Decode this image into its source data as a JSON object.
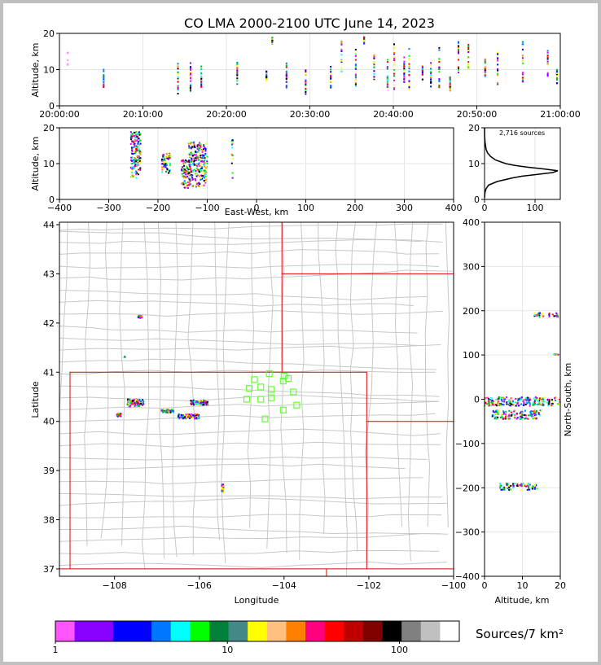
{
  "title": "CO LMA 2000-2100 UTC June 14, 2023",
  "colors": {
    "state_border": "#e00000",
    "county_border": "#c8c8c8",
    "station": "#66ff33",
    "frame": "#c0c0c0"
  },
  "chart_data": [
    {
      "id": "time-altitude",
      "type": "scatter",
      "ylabel": "Altitude, km",
      "ylim": [
        0,
        20
      ],
      "yticks": [
        0,
        10,
        20
      ],
      "xlim_minutes": [
        0,
        60
      ],
      "xticks": [
        {
          "minute": 0,
          "label": "20:00:00"
        },
        {
          "minute": 10,
          "label": "20:10:00"
        },
        {
          "minute": 20,
          "label": "20:20:00"
        },
        {
          "minute": 30,
          "label": "20:30:00"
        },
        {
          "minute": 40,
          "label": "20:40:00"
        },
        {
          "minute": 50,
          "label": "20:50:00"
        },
        {
          "minute": 60,
          "label": "21:00:00"
        }
      ],
      "flashes": [
        {
          "minute": 1.0,
          "alt": [
            11,
            15
          ],
          "faint": true
        },
        {
          "minute": 5.3,
          "alt": [
            5,
            10
          ]
        },
        {
          "minute": 14.2,
          "alt": [
            3,
            12
          ]
        },
        {
          "minute": 15.7,
          "alt": [
            4,
            12
          ]
        },
        {
          "minute": 17.0,
          "alt": [
            5,
            11
          ]
        },
        {
          "minute": 21.3,
          "alt": [
            6,
            12
          ]
        },
        {
          "minute": 24.8,
          "alt": [
            7,
            10
          ]
        },
        {
          "minute": 25.5,
          "alt": [
            17,
            19
          ]
        },
        {
          "minute": 27.2,
          "alt": [
            5,
            13
          ]
        },
        {
          "minute": 29.5,
          "alt": [
            3,
            10
          ]
        },
        {
          "minute": 32.5,
          "alt": [
            5,
            11
          ]
        },
        {
          "minute": 33.8,
          "alt": [
            9,
            18
          ]
        },
        {
          "minute": 35.5,
          "alt": [
            5,
            16
          ]
        },
        {
          "minute": 36.5,
          "alt": [
            17,
            19
          ]
        },
        {
          "minute": 37.7,
          "alt": [
            5,
            14
          ]
        },
        {
          "minute": 39.3,
          "alt": [
            5,
            14
          ]
        },
        {
          "minute": 40.1,
          "alt": [
            4,
            18
          ]
        },
        {
          "minute": 41.3,
          "alt": [
            6,
            14
          ]
        },
        {
          "minute": 41.9,
          "alt": [
            4,
            16
          ]
        },
        {
          "minute": 43.5,
          "alt": [
            7,
            11
          ]
        },
        {
          "minute": 44.5,
          "alt": [
            5,
            12
          ]
        },
        {
          "minute": 45.5,
          "alt": [
            5,
            17
          ]
        },
        {
          "minute": 46.8,
          "alt": [
            4,
            8
          ]
        },
        {
          "minute": 47.8,
          "alt": [
            9,
            18
          ]
        },
        {
          "minute": 49.0,
          "alt": [
            10,
            17
          ]
        },
        {
          "minute": 51.0,
          "alt": [
            8,
            13
          ]
        },
        {
          "minute": 52.5,
          "alt": [
            5,
            16
          ]
        },
        {
          "minute": 55.5,
          "alt": [
            6,
            18
          ]
        },
        {
          "minute": 58.5,
          "alt": [
            8,
            16
          ]
        },
        {
          "minute": 59.6,
          "alt": [
            6,
            10
          ]
        }
      ]
    },
    {
      "id": "ew-altitude",
      "type": "scatter",
      "xlabel": "East-West, km",
      "ylabel": "Altitude, km",
      "xlim": [
        -400,
        400
      ],
      "ylim": [
        0,
        20
      ],
      "xticks": [
        -400,
        -300,
        -200,
        -100,
        0,
        100,
        200,
        300,
        400
      ],
      "yticks": [
        0,
        10,
        20
      ],
      "clusters": [
        {
          "x": [
            -255,
            -235
          ],
          "alt": [
            6,
            19
          ]
        },
        {
          "x": [
            -192,
            -175
          ],
          "alt": [
            7,
            13
          ]
        },
        {
          "x": [
            -152,
            -135
          ],
          "alt": [
            3,
            11
          ]
        },
        {
          "x": [
            -138,
            -100
          ],
          "alt": [
            3,
            16
          ]
        },
        {
          "x": [
            -50,
            -48
          ],
          "alt": [
            5,
            17
          ]
        }
      ]
    },
    {
      "id": "altitude-histogram",
      "type": "line",
      "annotation": "2,716 sources",
      "xlim": [
        0,
        150
      ],
      "ylim": [
        0,
        20
      ],
      "xticks": [
        0,
        100
      ],
      "yticks": [
        0,
        10,
        20
      ],
      "profile": [
        {
          "alt": 0.5,
          "count": 0
        },
        {
          "alt": 2,
          "count": 1
        },
        {
          "alt": 3,
          "count": 3
        },
        {
          "alt": 4,
          "count": 8
        },
        {
          "alt": 5,
          "count": 25
        },
        {
          "alt": 6,
          "count": 55
        },
        {
          "alt": 6.5,
          "count": 75
        },
        {
          "alt": 7,
          "count": 105
        },
        {
          "alt": 7.5,
          "count": 135
        },
        {
          "alt": 8,
          "count": 145
        },
        {
          "alt": 8.5,
          "count": 118
        },
        {
          "alt": 9,
          "count": 85
        },
        {
          "alt": 9.5,
          "count": 60
        },
        {
          "alt": 10,
          "count": 42
        },
        {
          "alt": 11,
          "count": 22
        },
        {
          "alt": 12,
          "count": 12
        },
        {
          "alt": 13,
          "count": 6
        },
        {
          "alt": 14,
          "count": 3
        },
        {
          "alt": 16,
          "count": 1
        },
        {
          "alt": 18,
          "count": 0
        },
        {
          "alt": 20,
          "count": 0
        }
      ]
    },
    {
      "id": "plan-view",
      "type": "scatter",
      "xlabel": "Longitude",
      "ylabel": "Latitude",
      "xlim": [
        -109.3,
        -100.0
      ],
      "ylim": [
        36.85,
        44.05
      ],
      "xticks": [
        -108,
        -106,
        -104,
        -102,
        -100
      ],
      "yticks": [
        37,
        38,
        39,
        40,
        41,
        42,
        43,
        44
      ],
      "state_lines": [
        [
          [
            -109.05,
            37.0
          ],
          [
            -109.05,
            41.0
          ],
          [
            -102.05,
            41.0
          ],
          [
            -102.05,
            37.0
          ],
          [
            -109.05,
            37.0
          ]
        ],
        [
          [
            -104.05,
            41.0
          ],
          [
            -104.05,
            44.05
          ]
        ],
        [
          [
            -104.05,
            43.0
          ],
          [
            -100.0,
            43.0
          ]
        ],
        [
          [
            -102.05,
            40.0
          ],
          [
            -100.0,
            40.0
          ]
        ],
        [
          [
            -103.0,
            37.0
          ],
          [
            -103.0,
            36.85
          ]
        ],
        [
          [
            -109.05,
            37.0
          ],
          [
            -109.3,
            37.0
          ]
        ],
        [
          [
            -102.05,
            37.0
          ],
          [
            -100.0,
            37.0
          ]
        ]
      ],
      "stations": [
        [
          -104.35,
          40.97
        ],
        [
          -104.0,
          40.92
        ],
        [
          -103.9,
          40.87
        ],
        [
          -104.02,
          40.82
        ],
        [
          -104.7,
          40.85
        ],
        [
          -104.55,
          40.7
        ],
        [
          -104.82,
          40.67
        ],
        [
          -104.3,
          40.65
        ],
        [
          -103.78,
          40.6
        ],
        [
          -104.3,
          40.48
        ],
        [
          -104.55,
          40.45
        ],
        [
          -104.88,
          40.45
        ],
        [
          -103.7,
          40.33
        ],
        [
          -104.02,
          40.23
        ],
        [
          -104.45,
          40.05
        ]
      ],
      "source_patches": [
        {
          "lon": [
            -107.7,
            -107.3
          ],
          "lat": [
            40.3,
            40.45
          ]
        },
        {
          "lon": [
            -106.9,
            -106.6
          ],
          "lat": [
            40.18,
            40.24
          ]
        },
        {
          "lon": [
            -106.5,
            -106.0
          ],
          "lat": [
            40.05,
            40.15
          ]
        },
        {
          "lon": [
            -106.2,
            -105.8
          ],
          "lat": [
            40.33,
            40.43
          ]
        },
        {
          "lon": [
            -107.95,
            -107.85
          ],
          "lat": [
            40.1,
            40.16
          ]
        },
        {
          "lon": [
            -107.45,
            -107.35
          ],
          "lat": [
            42.1,
            42.15
          ]
        },
        {
          "lon": [
            -107.8,
            -107.75
          ],
          "lat": [
            41.3,
            41.33
          ]
        },
        {
          "lon": [
            -105.47,
            -105.43
          ],
          "lat": [
            38.55,
            38.72
          ]
        }
      ]
    },
    {
      "id": "altitude-ns",
      "type": "scatter",
      "xlabel": "Altitude, km",
      "ylabel": "North-South, km",
      "xlim": [
        0,
        20
      ],
      "ylim": [
        -400,
        400
      ],
      "xticks": [
        0,
        10,
        20
      ],
      "yticks": [
        -400,
        -300,
        -200,
        -100,
        0,
        100,
        200,
        300,
        400
      ],
      "clusters": [
        {
          "alt": [
            0,
            20
          ],
          "ns": [
            -15,
            5
          ]
        },
        {
          "alt": [
            2,
            15
          ],
          "ns": [
            -45,
            -25
          ]
        },
        {
          "alt": [
            4,
            14
          ],
          "ns": [
            -205,
            -190
          ]
        },
        {
          "alt": [
            13,
            20
          ],
          "ns": [
            185,
            195
          ]
        },
        {
          "alt": [
            18,
            20
          ],
          "ns": [
            100,
            102
          ]
        }
      ]
    }
  ],
  "colorbar": {
    "label": "Sources/7 km²",
    "ticks": [
      {
        "value": 1,
        "label": "1"
      },
      {
        "value": 10,
        "label": "10"
      },
      {
        "value": 100,
        "label": "100"
      }
    ],
    "min": 1,
    "max": 200,
    "colors": [
      "#ff55ff",
      "#8800ff",
      "#8800ff",
      "#0000ff",
      "#0000ff",
      "#0077ff",
      "#00ffff",
      "#00ff00",
      "#00803a",
      "#448888",
      "#ffff00",
      "#ffc080",
      "#ff8000",
      "#ff0080",
      "#ff0000",
      "#c00000",
      "#800000",
      "#000000",
      "#808080",
      "#c0c0c0",
      "#ffffff"
    ]
  }
}
